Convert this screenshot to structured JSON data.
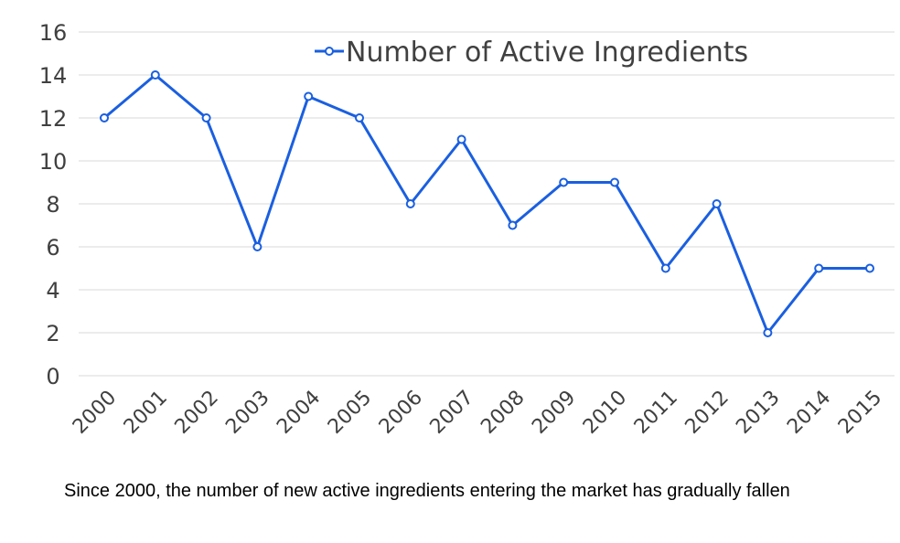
{
  "chart_data": {
    "type": "line",
    "categories": [
      "2000",
      "2001",
      "2002",
      "2003",
      "2004",
      "2005",
      "2006",
      "2007",
      "2008",
      "2009",
      "2010",
      "2011",
      "2012",
      "2013",
      "2014",
      "2015"
    ],
    "series": [
      {
        "name": "Number of Active Ingredients",
        "values": [
          12,
          14,
          12,
          6,
          13,
          12,
          8,
          11,
          7,
          9,
          9,
          5,
          8,
          2,
          5,
          5
        ],
        "color": "#1a5fe0"
      }
    ],
    "yticks": [
      0,
      2,
      4,
      6,
      8,
      10,
      12,
      14,
      16
    ],
    "ylim": [
      0,
      16
    ],
    "grid": true,
    "legend": "top-center",
    "title": "",
    "xlabel": "",
    "ylabel": ""
  },
  "caption": "Since 2000, the number of new active ingredients entering the market has gradually fallen"
}
